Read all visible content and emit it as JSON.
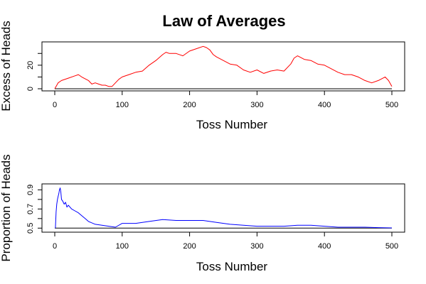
{
  "page": {
    "title": "Law of Averages"
  },
  "chart_data": [
    {
      "type": "line",
      "xlabel": "Toss Number",
      "ylabel": "Excess of Heads",
      "xlim": [
        0,
        500
      ],
      "ylim": [
        0,
        38
      ],
      "xticks": [
        0,
        100,
        200,
        300,
        400,
        500
      ],
      "yticks": [
        0,
        10,
        20,
        30
      ],
      "ytick_labels_shown": [
        "0",
        "20"
      ],
      "baseline": 0,
      "grid": false,
      "series": [
        {
          "color": "#ff0000",
          "x": [
            0,
            5,
            10,
            20,
            30,
            35,
            40,
            50,
            55,
            60,
            65,
            70,
            75,
            80,
            85,
            90,
            95,
            100,
            110,
            120,
            130,
            140,
            150,
            160,
            165,
            170,
            180,
            190,
            200,
            210,
            220,
            225,
            230,
            235,
            240,
            250,
            260,
            270,
            280,
            290,
            300,
            310,
            320,
            330,
            340,
            350,
            355,
            360,
            370,
            380,
            390,
            400,
            410,
            420,
            430,
            440,
            450,
            460,
            470,
            480,
            490,
            495,
            500
          ],
          "y": [
            0,
            5,
            7,
            9,
            11,
            12,
            10,
            7,
            4,
            5,
            4,
            3,
            3,
            2,
            2,
            5,
            8,
            10,
            12,
            14,
            15,
            20,
            24,
            29,
            31,
            30,
            30,
            28,
            32,
            34,
            36,
            35,
            33,
            29,
            27,
            24,
            21,
            20,
            16,
            14,
            16,
            13,
            15,
            16,
            15,
            21,
            26,
            28,
            25,
            24,
            21,
            20,
            17,
            14,
            12,
            12,
            10,
            7,
            5,
            7,
            10,
            7,
            2
          ]
        }
      ]
    },
    {
      "type": "line",
      "xlabel": "Toss Number",
      "ylabel": "Proportion of Heads",
      "xlim": [
        0,
        500
      ],
      "ylim": [
        0.48,
        0.94
      ],
      "xticks": [
        0,
        100,
        200,
        300,
        400,
        500
      ],
      "yticks": [
        0.5,
        0.6,
        0.7,
        0.8,
        0.9
      ],
      "ytick_labels_shown": [
        "0.5",
        "0.7",
        "0.9"
      ],
      "baseline": 0.5,
      "grid": false,
      "series": [
        {
          "color": "#0000ff",
          "x": [
            1,
            2,
            3,
            4,
            5,
            6,
            7,
            8,
            9,
            10,
            12,
            14,
            16,
            18,
            20,
            25,
            30,
            35,
            40,
            45,
            50,
            60,
            70,
            80,
            90,
            100,
            120,
            140,
            160,
            180,
            200,
            220,
            240,
            260,
            280,
            300,
            320,
            340,
            360,
            380,
            400,
            420,
            440,
            460,
            480,
            500
          ],
          "y": [
            0.5,
            0.67,
            0.75,
            0.8,
            0.83,
            0.86,
            0.9,
            0.92,
            0.88,
            0.8,
            0.78,
            0.75,
            0.77,
            0.72,
            0.74,
            0.7,
            0.68,
            0.66,
            0.63,
            0.6,
            0.57,
            0.54,
            0.53,
            0.52,
            0.51,
            0.55,
            0.55,
            0.57,
            0.59,
            0.58,
            0.58,
            0.58,
            0.56,
            0.54,
            0.53,
            0.52,
            0.52,
            0.52,
            0.53,
            0.53,
            0.52,
            0.51,
            0.51,
            0.51,
            0.505,
            0.502
          ]
        }
      ]
    }
  ]
}
